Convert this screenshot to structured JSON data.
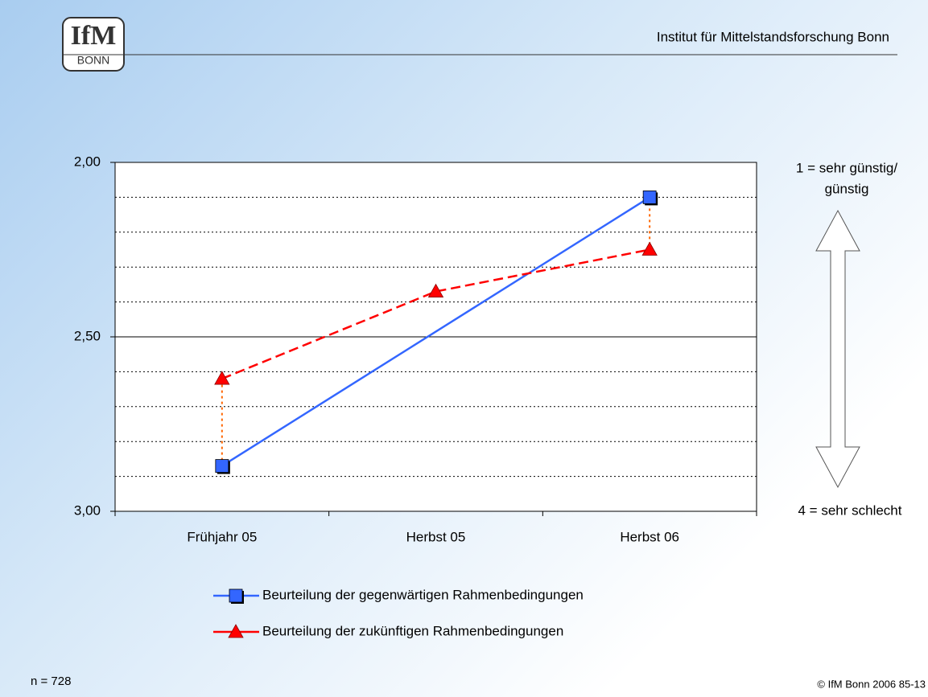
{
  "header": {
    "logo": "IfM",
    "logo_sub": "BONN",
    "institute": "Institut für Mittelstandsforschung Bonn"
  },
  "chart_data": {
    "type": "line",
    "categories": [
      "Frühjahr 05",
      "Herbst 05",
      "Herbst 06"
    ],
    "series": [
      {
        "name": "Beurteilung der gegenwärtigen Rahmenbedingungen",
        "color": "#3366ff",
        "marker": "square",
        "dash": false,
        "values": [
          2.87,
          null,
          2.1
        ]
      },
      {
        "name": "Beurteilung der zukünftigen Rahmenbedingungen",
        "color": "#ff0000",
        "marker": "triangle",
        "dash": true,
        "values": [
          2.62,
          2.37,
          2.25
        ]
      }
    ],
    "ylim": [
      3.0,
      2.0
    ],
    "yticks": [
      {
        "value": 2.0,
        "label": "2,00"
      },
      {
        "value": 2.5,
        "label": "2,50"
      },
      {
        "value": 3.0,
        "label": "3,00"
      }
    ],
    "minor_yticks": [
      2.1,
      2.2,
      2.3,
      2.4,
      2.6,
      2.7,
      2.8,
      2.9
    ],
    "connect_gaps": true,
    "high_low_lines": true,
    "high_low_color": "#ff6600",
    "annotations": {
      "top": [
        "1 = sehr günstig/",
        "günstig"
      ],
      "bottom": "4 = sehr schlecht"
    },
    "legend": "bottom"
  },
  "footer": {
    "n": "n = 728",
    "copyright": "© IfM Bonn 2006  85-13"
  }
}
